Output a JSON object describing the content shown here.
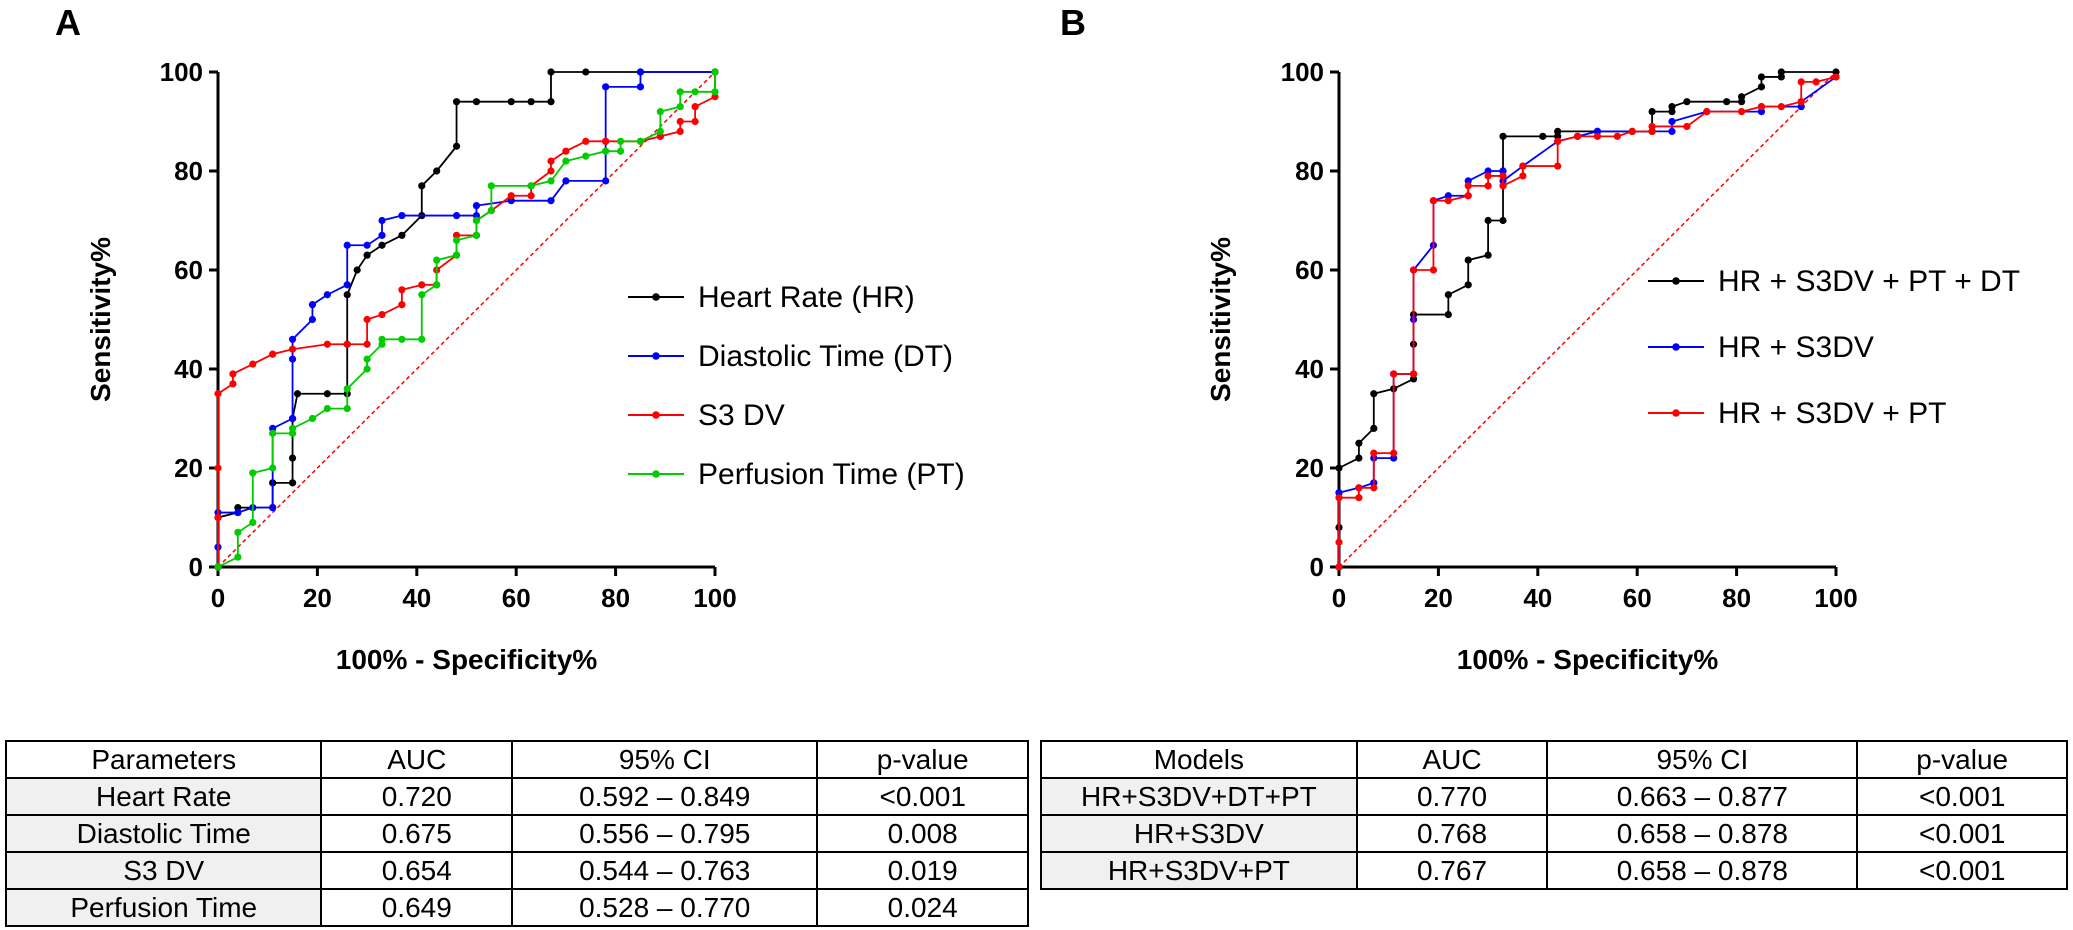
{
  "chart_data": [
    {
      "type": "line",
      "panel": "A",
      "xlabel": "100% - Specificity%",
      "ylabel": "Sensitivity%",
      "xlim": [
        0,
        100
      ],
      "ylim": [
        0,
        100
      ],
      "xticks": [
        0,
        20,
        40,
        60,
        80,
        100
      ],
      "yticks": [
        0,
        20,
        40,
        60,
        80,
        100
      ],
      "legend_position": "right",
      "series": [
        {
          "name": "Heart Rate (HR)",
          "color": "#000000",
          "points": [
            [
              0,
              0
            ],
            [
              0,
              10
            ],
            [
              4,
              11
            ],
            [
              4,
              12
            ],
            [
              11,
              12
            ],
            [
              11,
              17
            ],
            [
              15,
              17
            ],
            [
              15,
              22
            ],
            [
              15,
              30
            ],
            [
              16,
              35
            ],
            [
              22,
              35
            ],
            [
              26,
              35
            ],
            [
              26,
              45
            ],
            [
              26,
              55
            ],
            [
              28,
              60
            ],
            [
              30,
              63
            ],
            [
              33,
              65
            ],
            [
              37,
              67
            ],
            [
              41,
              71
            ],
            [
              41,
              77
            ],
            [
              44,
              80
            ],
            [
              48,
              85
            ],
            [
              48,
              94
            ],
            [
              52,
              94
            ],
            [
              59,
              94
            ],
            [
              63,
              94
            ],
            [
              67,
              94
            ],
            [
              67,
              100
            ],
            [
              74,
              100
            ],
            [
              85,
              100
            ],
            [
              100,
              100
            ]
          ]
        },
        {
          "name": "Diastolic Time (DT)",
          "color": "#0000ff",
          "points": [
            [
              0,
              0
            ],
            [
              0,
              4
            ],
            [
              0,
              11
            ],
            [
              4,
              11
            ],
            [
              7,
              12
            ],
            [
              11,
              12
            ],
            [
              11,
              28
            ],
            [
              15,
              30
            ],
            [
              15,
              42
            ],
            [
              15,
              46
            ],
            [
              19,
              50
            ],
            [
              19,
              53
            ],
            [
              22,
              55
            ],
            [
              26,
              57
            ],
            [
              26,
              65
            ],
            [
              30,
              65
            ],
            [
              33,
              67
            ],
            [
              33,
              70
            ],
            [
              37,
              71
            ],
            [
              48,
              71
            ],
            [
              52,
              71
            ],
            [
              52,
              73
            ],
            [
              59,
              74
            ],
            [
              67,
              74
            ],
            [
              70,
              78
            ],
            [
              78,
              78
            ],
            [
              78,
              86
            ],
            [
              78,
              97
            ],
            [
              85,
              97
            ],
            [
              85,
              100
            ],
            [
              100,
              100
            ]
          ]
        },
        {
          "name": "S3 DV",
          "color": "#ff0000",
          "points": [
            [
              0,
              0
            ],
            [
              0,
              10
            ],
            [
              0,
              20
            ],
            [
              0,
              35
            ],
            [
              3,
              37
            ],
            [
              3,
              39
            ],
            [
              7,
              41
            ],
            [
              11,
              43
            ],
            [
              15,
              44
            ],
            [
              22,
              45
            ],
            [
              26,
              45
            ],
            [
              30,
              45
            ],
            [
              30,
              50
            ],
            [
              33,
              51
            ],
            [
              37,
              53
            ],
            [
              37,
              56
            ],
            [
              41,
              57
            ],
            [
              44,
              57
            ],
            [
              44,
              60
            ],
            [
              48,
              63
            ],
            [
              48,
              67
            ],
            [
              52,
              67
            ],
            [
              52,
              70
            ],
            [
              55,
              72
            ],
            [
              59,
              75
            ],
            [
              63,
              75
            ],
            [
              63,
              77
            ],
            [
              67,
              80
            ],
            [
              67,
              82
            ],
            [
              70,
              84
            ],
            [
              74,
              86
            ],
            [
              78,
              86
            ],
            [
              85,
              86
            ],
            [
              89,
              87
            ],
            [
              89,
              87
            ],
            [
              93,
              88
            ],
            [
              93,
              90
            ],
            [
              96,
              90
            ],
            [
              96,
              93
            ],
            [
              100,
              95
            ],
            [
              100,
              100
            ]
          ]
        },
        {
          "name": "Perfusion Time (PT)",
          "color": "#00cc00",
          "points": [
            [
              0,
              0
            ],
            [
              4,
              2
            ],
            [
              4,
              7
            ],
            [
              7,
              9
            ],
            [
              7,
              19
            ],
            [
              11,
              20
            ],
            [
              11,
              27
            ],
            [
              15,
              27
            ],
            [
              15,
              28
            ],
            [
              19,
              30
            ],
            [
              22,
              32
            ],
            [
              26,
              32
            ],
            [
              26,
              36
            ],
            [
              30,
              40
            ],
            [
              30,
              42
            ],
            [
              33,
              45
            ],
            [
              33,
              46
            ],
            [
              37,
              46
            ],
            [
              41,
              46
            ],
            [
              41,
              55
            ],
            [
              44,
              57
            ],
            [
              44,
              62
            ],
            [
              48,
              63
            ],
            [
              48,
              66
            ],
            [
              52,
              67
            ],
            [
              52,
              70
            ],
            [
              55,
              72
            ],
            [
              55,
              77
            ],
            [
              63,
              77
            ],
            [
              67,
              78
            ],
            [
              70,
              82
            ],
            [
              74,
              83
            ],
            [
              78,
              84
            ],
            [
              81,
              84
            ],
            [
              81,
              86
            ],
            [
              85,
              86
            ],
            [
              89,
              88
            ],
            [
              89,
              92
            ],
            [
              93,
              93
            ],
            [
              93,
              96
            ],
            [
              96,
              96
            ],
            [
              100,
              96
            ],
            [
              100,
              100
            ]
          ]
        }
      ]
    },
    {
      "type": "line",
      "panel": "B",
      "xlabel": "100% - Specificity%",
      "ylabel": "Sensitivity%",
      "xlim": [
        0,
        100
      ],
      "ylim": [
        0,
        100
      ],
      "xticks": [
        0,
        20,
        40,
        60,
        80,
        100
      ],
      "yticks": [
        0,
        20,
        40,
        60,
        80,
        100
      ],
      "legend_position": "right",
      "series": [
        {
          "name": "HR + S3DV + PT + DT",
          "color": "#000000",
          "points": [
            [
              0,
              0
            ],
            [
              0,
              8
            ],
            [
              0,
              15
            ],
            [
              0,
              20
            ],
            [
              4,
              22
            ],
            [
              4,
              25
            ],
            [
              7,
              28
            ],
            [
              7,
              35
            ],
            [
              11,
              36
            ],
            [
              15,
              38
            ],
            [
              15,
              45
            ],
            [
              15,
              51
            ],
            [
              22,
              51
            ],
            [
              22,
              55
            ],
            [
              26,
              57
            ],
            [
              26,
              62
            ],
            [
              30,
              63
            ],
            [
              30,
              70
            ],
            [
              33,
              70
            ],
            [
              33,
              80
            ],
            [
              33,
              87
            ],
            [
              41,
              87
            ],
            [
              44,
              87
            ],
            [
              44,
              88
            ],
            [
              52,
              88
            ],
            [
              59,
              88
            ],
            [
              63,
              88
            ],
            [
              63,
              92
            ],
            [
              67,
              92
            ],
            [
              67,
              93
            ],
            [
              70,
              94
            ],
            [
              78,
              94
            ],
            [
              81,
              94
            ],
            [
              81,
              95
            ],
            [
              85,
              97
            ],
            [
              85,
              99
            ],
            [
              89,
              99
            ],
            [
              89,
              100
            ],
            [
              100,
              100
            ]
          ]
        },
        {
          "name": "HR + S3DV",
          "color": "#0000ff",
          "points": [
            [
              0,
              0
            ],
            [
              0,
              15
            ],
            [
              4,
              16
            ],
            [
              7,
              17
            ],
            [
              7,
              22
            ],
            [
              11,
              22
            ],
            [
              11,
              39
            ],
            [
              15,
              39
            ],
            [
              15,
              50
            ],
            [
              15,
              60
            ],
            [
              19,
              65
            ],
            [
              19,
              74
            ],
            [
              22,
              75
            ],
            [
              26,
              75
            ],
            [
              26,
              78
            ],
            [
              30,
              80
            ],
            [
              33,
              80
            ],
            [
              33,
              78
            ],
            [
              37,
              81
            ],
            [
              44,
              86
            ],
            [
              48,
              87
            ],
            [
              52,
              88
            ],
            [
              67,
              88
            ],
            [
              67,
              90
            ],
            [
              74,
              92
            ],
            [
              85,
              92
            ],
            [
              85,
              93
            ],
            [
              93,
              93
            ],
            [
              93,
              94
            ],
            [
              100,
              99
            ]
          ]
        },
        {
          "name": "HR + S3DV + PT",
          "color": "#ff0000",
          "points": [
            [
              0,
              0
            ],
            [
              0,
              5
            ],
            [
              0,
              14
            ],
            [
              4,
              14
            ],
            [
              4,
              16
            ],
            [
              7,
              16
            ],
            [
              7,
              23
            ],
            [
              11,
              23
            ],
            [
              11,
              39
            ],
            [
              15,
              39
            ],
            [
              15,
              60
            ],
            [
              19,
              60
            ],
            [
              19,
              74
            ],
            [
              22,
              74
            ],
            [
              26,
              75
            ],
            [
              26,
              77
            ],
            [
              30,
              77
            ],
            [
              30,
              79
            ],
            [
              33,
              79
            ],
            [
              33,
              77
            ],
            [
              37,
              79
            ],
            [
              37,
              81
            ],
            [
              44,
              81
            ],
            [
              44,
              86
            ],
            [
              48,
              87
            ],
            [
              52,
              87
            ],
            [
              56,
              87
            ],
            [
              59,
              88
            ],
            [
              63,
              88
            ],
            [
              63,
              89
            ],
            [
              70,
              89
            ],
            [
              74,
              92
            ],
            [
              81,
              92
            ],
            [
              85,
              93
            ],
            [
              89,
              93
            ],
            [
              93,
              94
            ],
            [
              93,
              98
            ],
            [
              96,
              98
            ],
            [
              100,
              99
            ]
          ]
        }
      ]
    }
  ],
  "panels": {
    "a": {
      "label": "A"
    },
    "b": {
      "label": "B"
    }
  },
  "diagonal_color": "#ff0000",
  "tables": {
    "left": {
      "headers": [
        "Parameters",
        "AUC",
        "95% CI",
        "p-value"
      ],
      "rows": [
        [
          "Heart Rate",
          "0.720",
          "0.592 – 0.849",
          "<0.001"
        ],
        [
          "Diastolic Time",
          "0.675",
          "0.556 – 0.795",
          "0.008"
        ],
        [
          "S3 DV",
          "0.654",
          "0.544 – 0.763",
          "0.019"
        ],
        [
          "Perfusion Time",
          "0.649",
          "0.528 – 0.770",
          "0.024"
        ]
      ]
    },
    "right": {
      "headers": [
        "Models",
        "AUC",
        "95% CI",
        "p-value"
      ],
      "rows": [
        [
          "HR+S3DV+DT+PT",
          "0.770",
          "0.663 – 0.877",
          "<0.001"
        ],
        [
          "HR+S3DV",
          "0.768",
          "0.658 – 0.878",
          "<0.001"
        ],
        [
          "HR+S3DV+PT",
          "0.767",
          "0.658 – 0.878",
          "<0.001"
        ]
      ]
    }
  }
}
